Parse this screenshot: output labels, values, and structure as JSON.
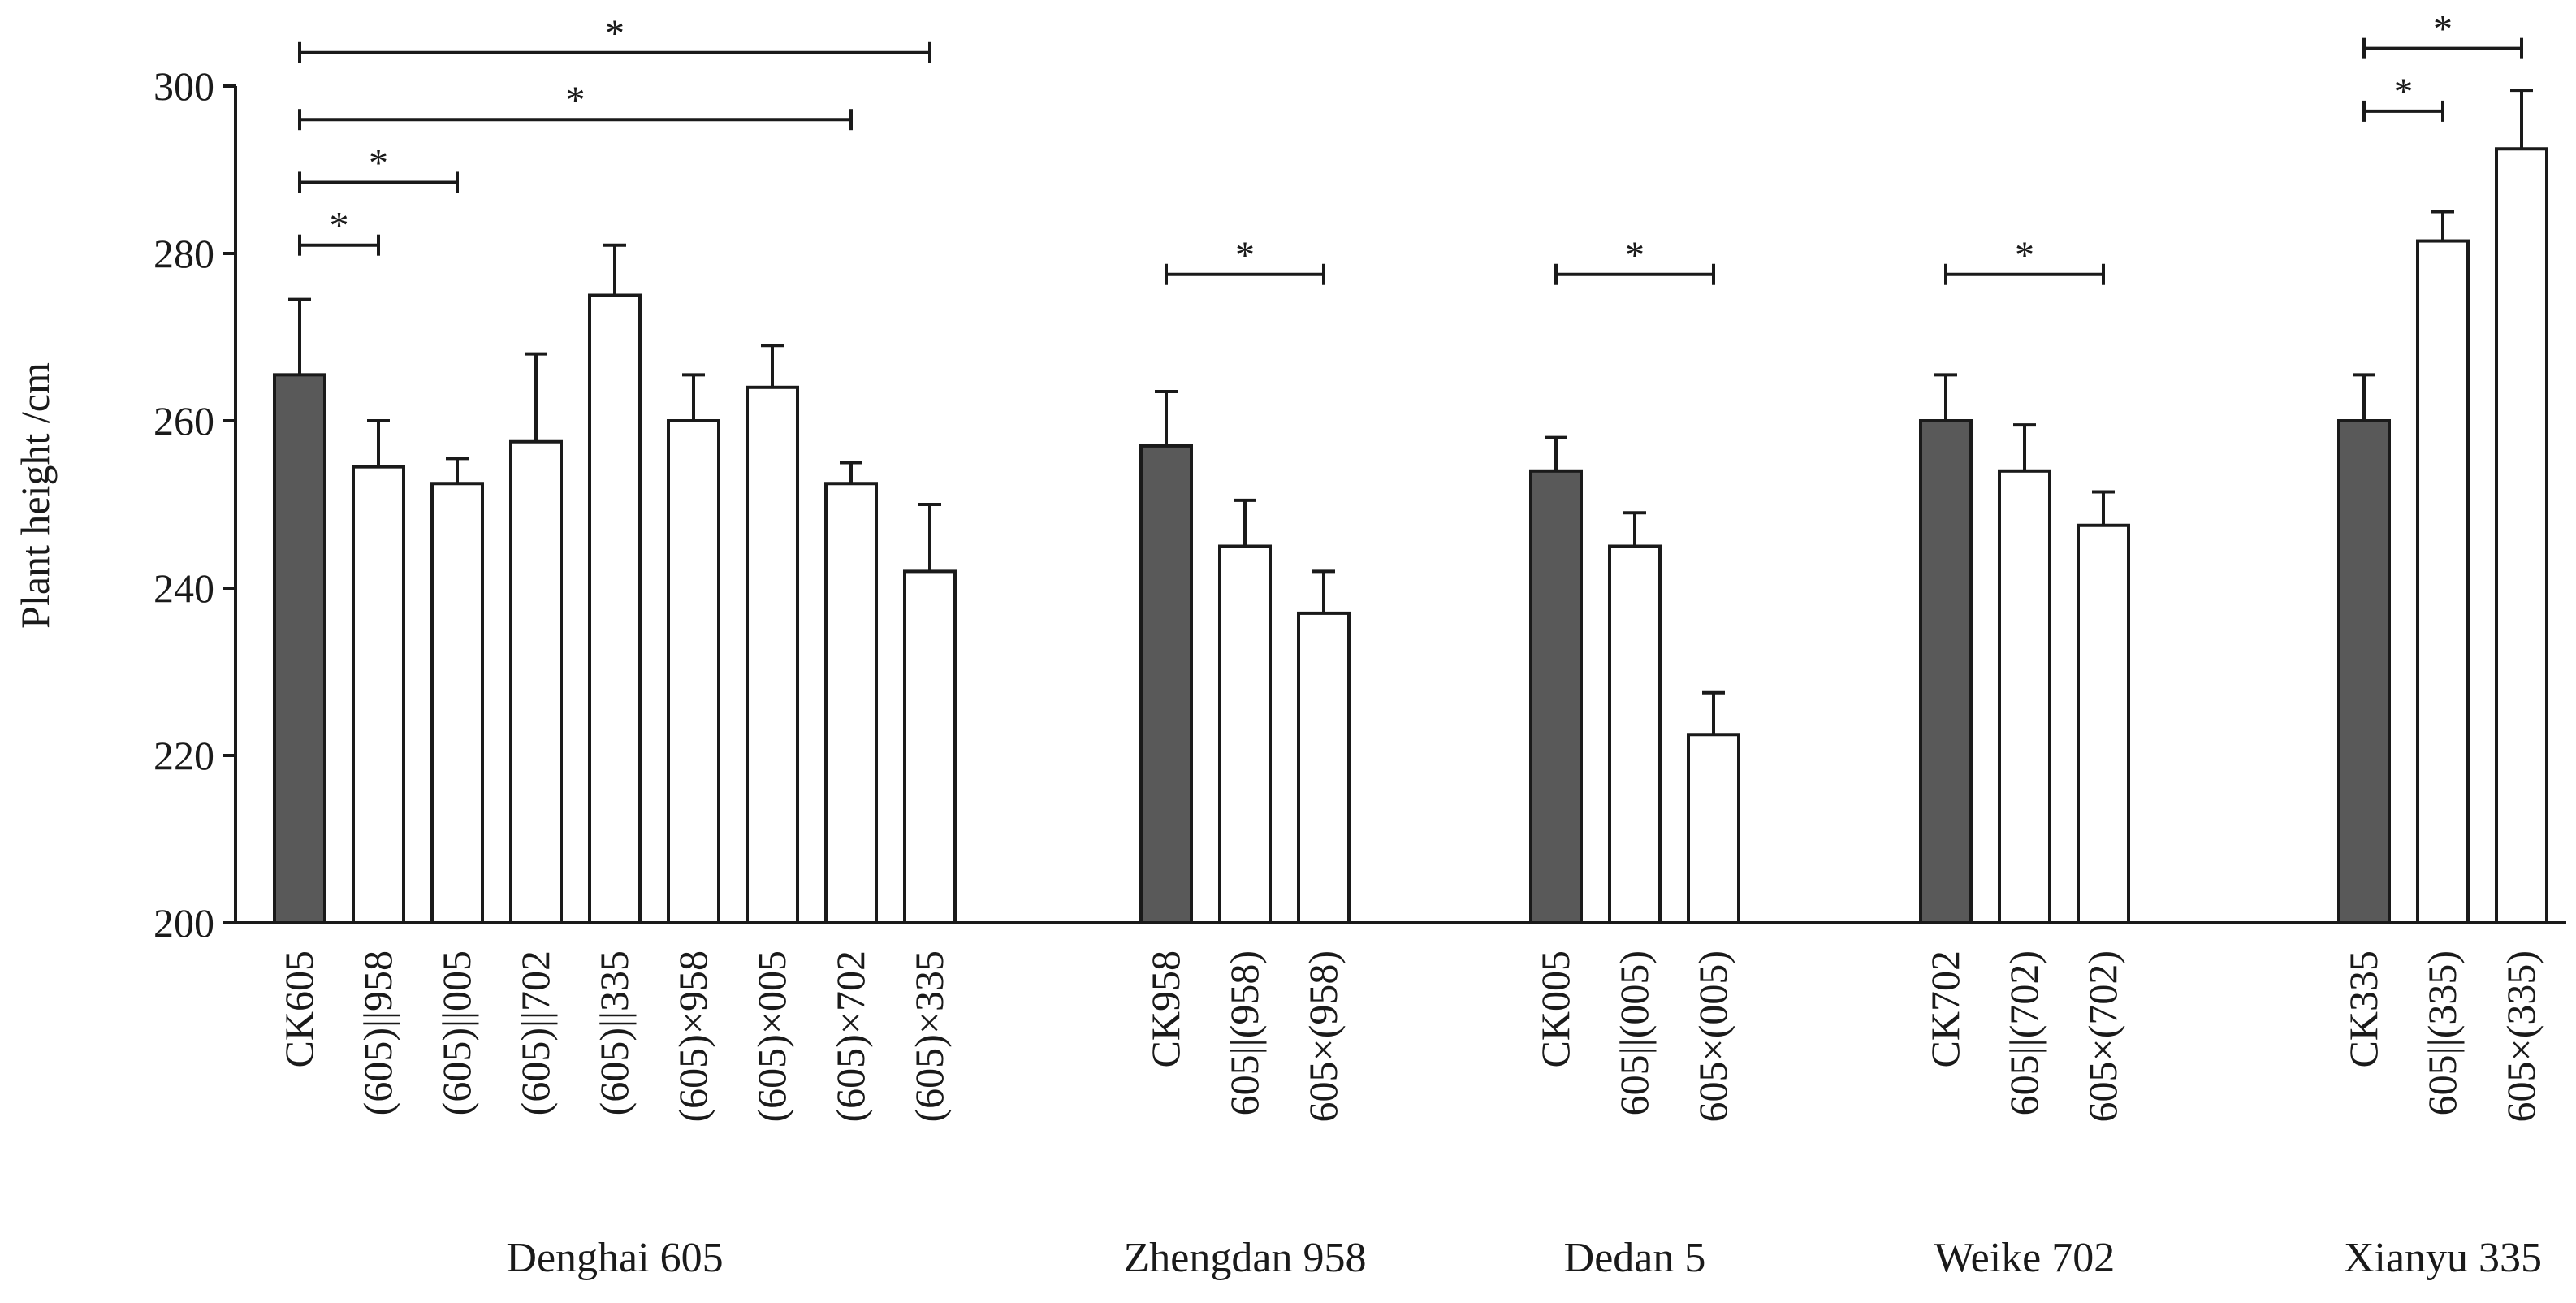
{
  "chart_data": {
    "type": "bar",
    "ylabel": "Plant height /cm",
    "ylim": [
      200,
      300
    ],
    "yticks": [
      "200",
      "220",
      "240",
      "260",
      "280",
      "300"
    ],
    "colors": {
      "control": "#595959",
      "treatment": "#ffffff",
      "stroke": "#1a1a1a"
    },
    "groups": [
      {
        "name": "Denghai 605",
        "bars": [
          {
            "label": "CK605",
            "value": 265.5,
            "err": 9,
            "control": true
          },
          {
            "label": "(605)||958",
            "value": 254.5,
            "err": 5.5,
            "control": false
          },
          {
            "label": "(605)||005",
            "value": 252.5,
            "err": 3,
            "control": false
          },
          {
            "label": "(605)||702",
            "value": 257.5,
            "err": 10.5,
            "control": false
          },
          {
            "label": "(605)||335",
            "value": 275,
            "err": 6,
            "control": false
          },
          {
            "label": "(605)×958",
            "value": 260,
            "err": 5.5,
            "control": false
          },
          {
            "label": "(605)×005",
            "value": 264,
            "err": 5,
            "control": false
          },
          {
            "label": "(605)×702",
            "value": 252.5,
            "err": 2.5,
            "control": false
          },
          {
            "label": "(605)×335",
            "value": 242,
            "err": 8,
            "control": false
          }
        ],
        "sig": [
          {
            "from": 0,
            "to": 1,
            "y": 281,
            "text": "*"
          },
          {
            "from": 0,
            "to": 2,
            "y": 288.5,
            "text": "*"
          },
          {
            "from": 0,
            "to": 7,
            "y": 296,
            "text": "*"
          },
          {
            "from": 0,
            "to": 8,
            "y": 304,
            "text": "*"
          }
        ]
      },
      {
        "name": "Zhengdan 958",
        "bars": [
          {
            "label": "CK958",
            "value": 257,
            "err": 6.5,
            "control": true
          },
          {
            "label": "605||(958)",
            "value": 245,
            "err": 5.5,
            "control": false
          },
          {
            "label": "605×(958)",
            "value": 237,
            "err": 5,
            "control": false
          }
        ],
        "sig": [
          {
            "from": 0,
            "to": 2,
            "y": 277.5,
            "text": "*"
          }
        ]
      },
      {
        "name": "Dedan 5",
        "bars": [
          {
            "label": "CK005",
            "value": 254,
            "err": 4,
            "control": true
          },
          {
            "label": "605||(005)",
            "value": 245,
            "err": 4,
            "control": false
          },
          {
            "label": "605×(005)",
            "value": 222.5,
            "err": 5,
            "control": false
          }
        ],
        "sig": [
          {
            "from": 0,
            "to": 2,
            "y": 277.5,
            "text": "*"
          }
        ]
      },
      {
        "name": "Weike 702",
        "bars": [
          {
            "label": "CK702",
            "value": 260,
            "err": 5.5,
            "control": true
          },
          {
            "label": "605||(702)",
            "value": 254,
            "err": 5.5,
            "control": false
          },
          {
            "label": "605×(702)",
            "value": 247.5,
            "err": 4,
            "control": false
          }
        ],
        "sig": [
          {
            "from": 0,
            "to": 2,
            "y": 277.5,
            "text": "*"
          }
        ]
      },
      {
        "name": "Xianyu 335",
        "bars": [
          {
            "label": "CK335",
            "value": 260,
            "err": 5.5,
            "control": true
          },
          {
            "label": "605||(335)",
            "value": 281.5,
            "err": 3.5,
            "control": false
          },
          {
            "label": "605×(335)",
            "value": 292.5,
            "err": 7,
            "control": false
          }
        ],
        "sig": [
          {
            "from": 0,
            "to": 1,
            "y": 297,
            "text": "*"
          },
          {
            "from": 0,
            "to": 2,
            "y": 304.5,
            "text": "*"
          }
        ]
      }
    ]
  }
}
